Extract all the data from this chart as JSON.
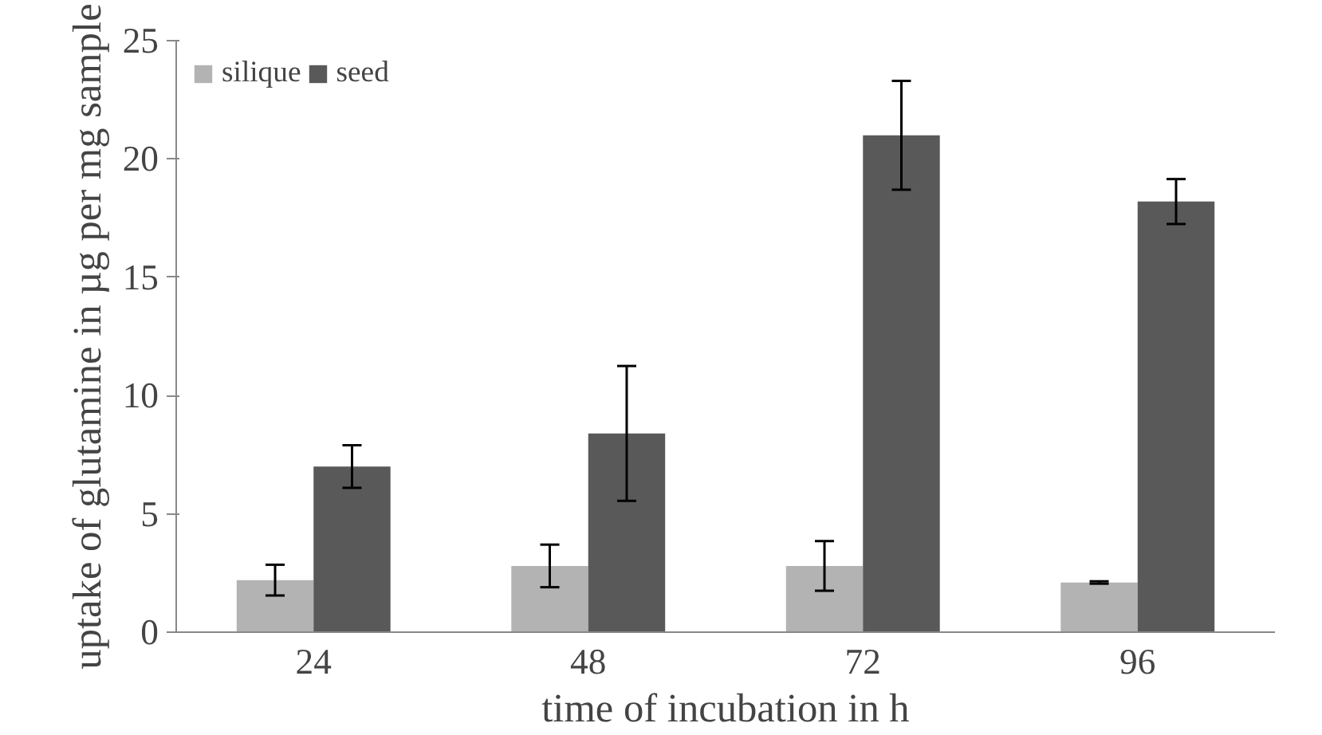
{
  "chart_data": {
    "type": "bar",
    "xlabel": "time of incubation in h",
    "ylabel": "uptake of glutamine in µg per mg sample",
    "categories": [
      "24",
      "48",
      "72",
      "96"
    ],
    "series": [
      {
        "name": "silique",
        "color": "#b3b3b3",
        "values": [
          2.2,
          2.8,
          2.8,
          2.1
        ],
        "errors": [
          0.65,
          0.9,
          1.05,
          0.05
        ]
      },
      {
        "name": "seed",
        "color": "#595959",
        "values": [
          7.0,
          8.4,
          21.0,
          18.2
        ],
        "errors": [
          0.9,
          2.85,
          2.3,
          0.95
        ]
      }
    ],
    "ylim": [
      0,
      25
    ],
    "yticks": [
      0,
      5,
      10,
      15,
      20,
      25
    ],
    "grid": false,
    "legend": "top left"
  }
}
